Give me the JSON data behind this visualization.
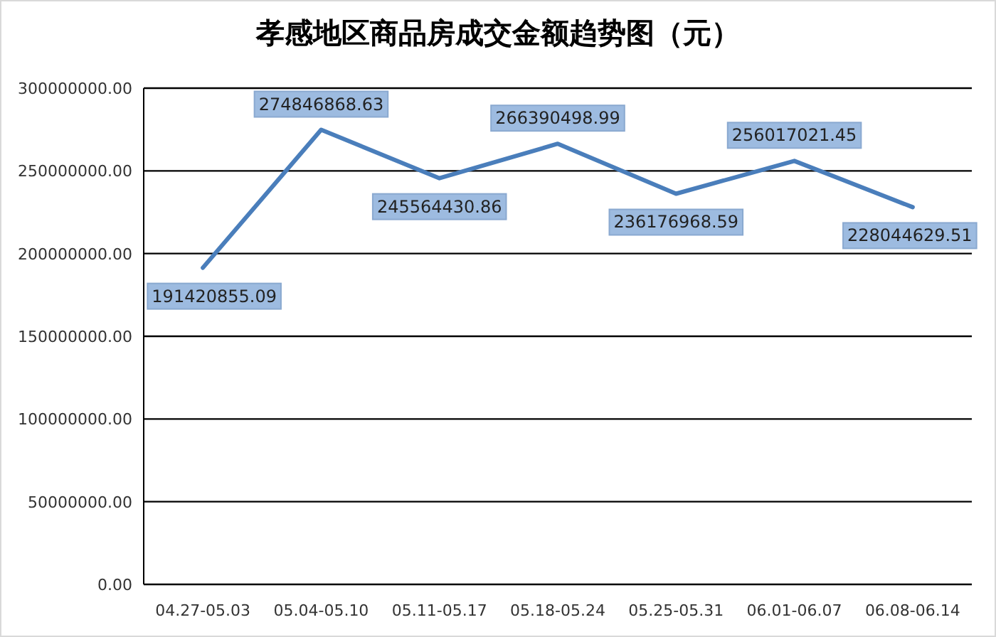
{
  "chart_data": {
    "type": "line",
    "title": "孝感地区商品房成交金额趋势图（元）",
    "categories": [
      "04.27-05.03",
      "05.04-05.10",
      "05.11-05.17",
      "05.18-05.24",
      "05.25-05.31",
      "06.01-06.07",
      "06.08-06.14"
    ],
    "series": [
      {
        "color": "#4a7ebb",
        "values": [
          191420855.09,
          274846868.63,
          245564430.86,
          266390498.99,
          236176968.59,
          256017021.45,
          228044629.51
        ]
      }
    ],
    "ylim": [
      0,
      300000000
    ],
    "yticks": [
      {
        "value": 0,
        "label": "0.00"
      },
      {
        "value": 50000000,
        "label": "50000000.00"
      },
      {
        "value": 100000000,
        "label": "100000000.00"
      },
      {
        "value": 150000000,
        "label": "150000000.00"
      },
      {
        "value": 200000000,
        "label": "200000000.00"
      },
      {
        "value": 250000000,
        "label": "250000000.00"
      },
      {
        "value": 300000000,
        "label": "300000000.00"
      }
    ],
    "grid": "y",
    "data_labels": true,
    "marker": "none",
    "line_style": "solid"
  }
}
